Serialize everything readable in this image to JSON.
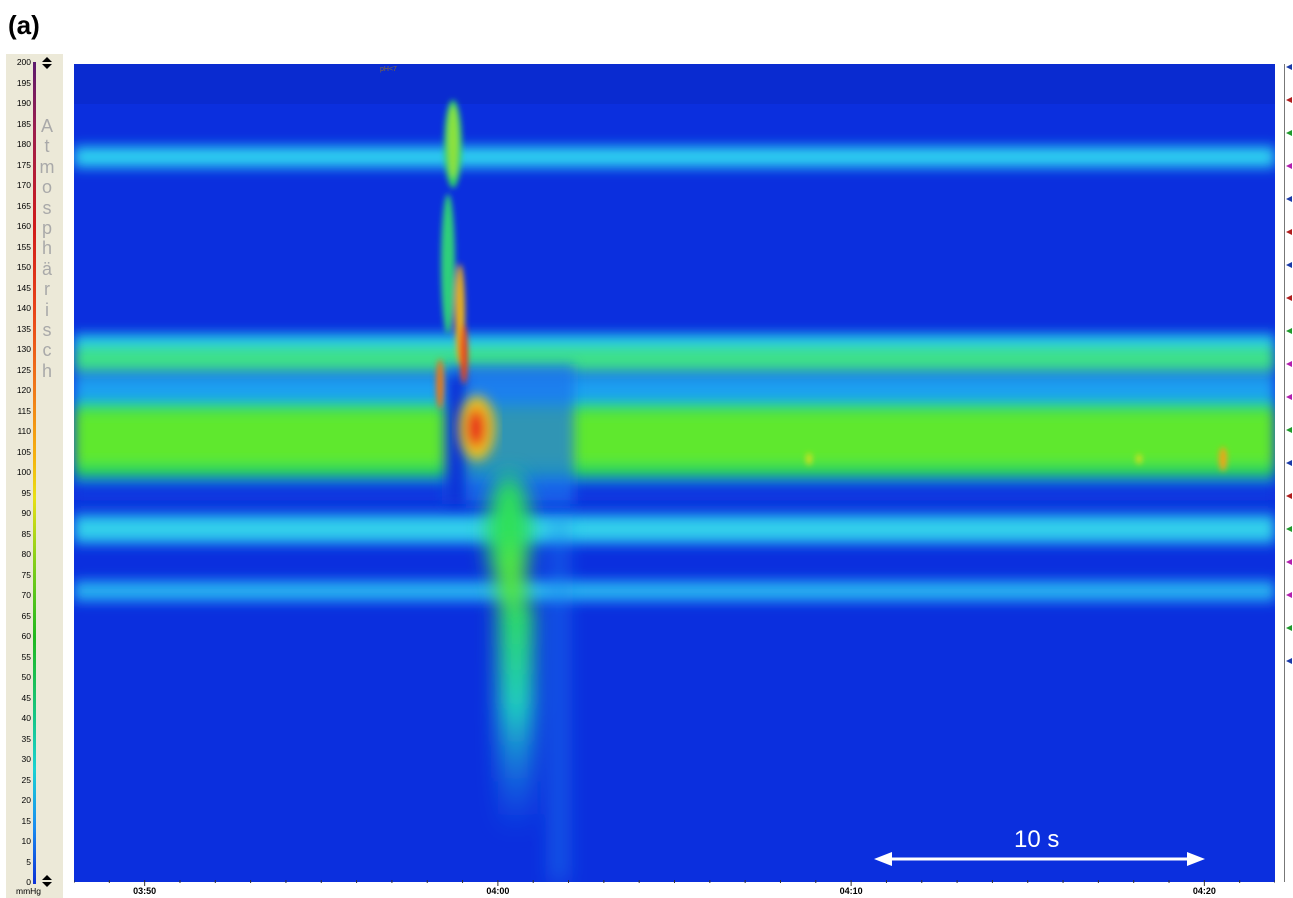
{
  "panel_label": "(a)",
  "colorscale": {
    "name_letters": [
      "A",
      "t",
      "m",
      "o",
      "s",
      "p",
      "h",
      "ä",
      "r",
      "i",
      "s",
      "c",
      "h"
    ],
    "ticks": [
      "200",
      "195",
      "190",
      "185",
      "180",
      "175",
      "170",
      "165",
      "160",
      "155",
      "150",
      "145",
      "140",
      "135",
      "130",
      "125",
      "120",
      "115",
      "110",
      "105",
      "100",
      "95",
      "90",
      "85",
      "80",
      "75",
      "70",
      "65",
      "60",
      "55",
      "50",
      "45",
      "40",
      "35",
      "30",
      "25",
      "20",
      "15",
      "10",
      "5",
      "0"
    ],
    "unit": "mmHg",
    "range": [
      0,
      200
    ]
  },
  "event_marker": "pH<7",
  "scale_bar": {
    "label": "10 s"
  },
  "colors": {
    "background_blue": "#0b2fde",
    "band_cyan": "#1fc3f0",
    "band_green": "#2fe05a",
    "hot_red": "#e8231a",
    "panel_bg": "#ece9d8",
    "marker_blue": "#1a3aa8",
    "marker_red": "#b01e1e",
    "marker_green": "#1f9a2c",
    "marker_magenta": "#b21fae"
  },
  "chart_data": {
    "type": "heatmap",
    "title": "",
    "xlabel": "",
    "ylabel": "",
    "x_ticks": [
      "03:50",
      "04:00",
      "04:10",
      "04:20"
    ],
    "x_range_s": [
      228,
      262
    ],
    "y_range_mmHg": [
      0,
      200
    ],
    "z_unit": "mmHg",
    "colorscale_range": [
      0,
      200
    ],
    "swallow_time_s": 236.5,
    "baseline_bands_cm": [
      {
        "position": 177,
        "pressure_mmHg": 30
      },
      {
        "position": 133,
        "pressure_mmHg": 45
      },
      {
        "position": 126,
        "pressure_mmHg": 50
      },
      {
        "position": 110,
        "pressure_mmHg": 80
      },
      {
        "position": 104,
        "pressure_mmHg": 85
      },
      {
        "position": 88,
        "pressure_mmHg": 35
      },
      {
        "position": 72,
        "pressure_mmHg": 25
      }
    ],
    "marker_rows": [
      "blue",
      "red",
      "green",
      "magenta",
      "blue",
      "red",
      "blue",
      "red",
      "green",
      "magenta",
      "magenta",
      "green",
      "blue",
      "red",
      "green",
      "magenta",
      "magenta",
      "green",
      "blue"
    ]
  }
}
